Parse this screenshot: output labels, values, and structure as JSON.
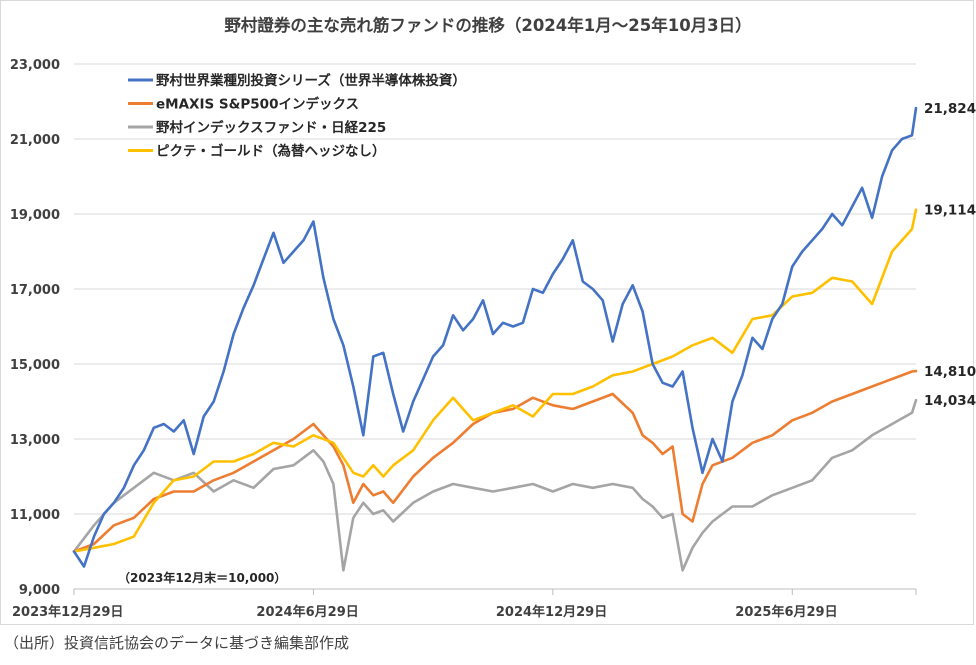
{
  "chart_data": {
    "type": "line",
    "title": "野村證券の主な売れ筋ファンドの推移（2024年1月～25年10月3日）",
    "xlabel": "",
    "ylabel": "",
    "x_unit": "months since 2023-12-29",
    "xlim": [
      0,
      21.1
    ],
    "ylim": [
      9000,
      23000
    ],
    "yticks": [
      9000,
      11000,
      13000,
      15000,
      17000,
      19000,
      21000,
      23000
    ],
    "ytick_labels": [
      "9,000",
      "11,000",
      "13,000",
      "15,000",
      "17,000",
      "19,000",
      "21,000",
      "23,000"
    ],
    "xticks": [
      0,
      6,
      12,
      18
    ],
    "xtick_labels": [
      "2023年12月29日",
      "2024年6月29日",
      "2024年12月29日",
      "2025年6月29日"
    ],
    "grid": true,
    "legend_position": "top-left",
    "annotation": "（2023年12月末＝10,000）",
    "series": [
      {
        "name": "野村世界業種別投資シリーズ（世界半導体株投資）",
        "color": "#4472c4",
        "end_label": "21,824",
        "x": [
          0,
          0.25,
          0.5,
          0.75,
          1,
          1.25,
          1.5,
          1.75,
          2,
          2.25,
          2.5,
          2.75,
          3,
          3.25,
          3.5,
          3.75,
          4,
          4.25,
          4.5,
          4.75,
          5,
          5.25,
          5.5,
          5.75,
          6,
          6.25,
          6.5,
          6.75,
          7,
          7.25,
          7.5,
          7.75,
          8,
          8.25,
          8.5,
          8.75,
          9,
          9.25,
          9.5,
          9.75,
          10,
          10.25,
          10.5,
          10.75,
          11,
          11.25,
          11.5,
          11.75,
          12,
          12.25,
          12.5,
          12.75,
          13,
          13.25,
          13.5,
          13.75,
          14,
          14.25,
          14.5,
          14.75,
          15,
          15.25,
          15.5,
          15.75,
          16,
          16.25,
          16.5,
          16.75,
          17,
          17.25,
          17.5,
          17.75,
          18,
          18.25,
          18.5,
          18.75,
          19,
          19.25,
          19.5,
          19.75,
          20,
          20.25,
          20.5,
          20.75,
          21,
          21.1
        ],
        "y": [
          10000,
          9600,
          10400,
          11000,
          11300,
          11700,
          12300,
          12700,
          13300,
          13400,
          13200,
          13500,
          12600,
          13600,
          14000,
          14800,
          15800,
          16500,
          17100,
          17800,
          18500,
          17700,
          18000,
          18300,
          18800,
          17300,
          16200,
          15500,
          14400,
          13100,
          15200,
          15300,
          14200,
          13200,
          14000,
          14600,
          15200,
          15500,
          16300,
          15900,
          16200,
          16700,
          15800,
          16100,
          16000,
          16100,
          17000,
          16900,
          17400,
          17800,
          18300,
          17200,
          17000,
          16700,
          15600,
          16600,
          17100,
          16400,
          15000,
          14500,
          14400,
          14800,
          13300,
          12100,
          13000,
          12400,
          14000,
          14700,
          15700,
          15400,
          16200,
          16600,
          17600,
          18000,
          18300,
          18600,
          19000,
          18700,
          19200,
          19700,
          18900,
          20000,
          20700,
          21000,
          21100,
          21824
        ]
      },
      {
        "name": "eMAXIS S&P500インデックス",
        "color": "#ed7d31",
        "end_label": "14,810",
        "x": [
          0,
          0.5,
          1,
          1.5,
          2,
          2.5,
          3,
          3.5,
          4,
          4.5,
          5,
          5.5,
          6,
          6.25,
          6.5,
          6.75,
          7,
          7.25,
          7.5,
          7.75,
          8,
          8.5,
          9,
          9.5,
          10,
          10.5,
          11,
          11.5,
          12,
          12.5,
          13,
          13.5,
          14,
          14.25,
          14.5,
          14.75,
          15,
          15.25,
          15.5,
          15.75,
          16,
          16.5,
          17,
          17.5,
          18,
          18.5,
          19,
          19.5,
          20,
          20.5,
          21,
          21.1
        ],
        "y": [
          10000,
          10200,
          10700,
          10900,
          11400,
          11600,
          11600,
          11900,
          12100,
          12400,
          12700,
          13000,
          13400,
          13100,
          12800,
          12300,
          11300,
          11800,
          11500,
          11600,
          11300,
          12000,
          12500,
          12900,
          13400,
          13700,
          13800,
          14100,
          13900,
          13800,
          14000,
          14200,
          13700,
          13100,
          12900,
          12600,
          12800,
          11000,
          10800,
          11800,
          12300,
          12500,
          12900,
          13100,
          13500,
          13700,
          14000,
          14200,
          14400,
          14600,
          14800,
          14810
        ]
      },
      {
        "name": "野村インデックスファンド・日経225",
        "color": "#a5a5a5",
        "end_label": "14,034",
        "x": [
          0,
          0.5,
          1,
          1.5,
          2,
          2.5,
          3,
          3.5,
          4,
          4.5,
          5,
          5.5,
          6,
          6.25,
          6.5,
          6.75,
          7,
          7.25,
          7.5,
          7.75,
          8,
          8.5,
          9,
          9.5,
          10,
          10.5,
          11,
          11.5,
          12,
          12.5,
          13,
          13.5,
          14,
          14.25,
          14.5,
          14.75,
          15,
          15.25,
          15.5,
          15.75,
          16,
          16.5,
          17,
          17.5,
          18,
          18.5,
          19,
          19.5,
          20,
          20.5,
          21,
          21.1
        ],
        "y": [
          10000,
          10700,
          11300,
          11700,
          12100,
          11900,
          12100,
          11600,
          11900,
          11700,
          12200,
          12300,
          12700,
          12400,
          11800,
          9500,
          10900,
          11300,
          11000,
          11100,
          10800,
          11300,
          11600,
          11800,
          11700,
          11600,
          11700,
          11800,
          11600,
          11800,
          11700,
          11800,
          11700,
          11400,
          11200,
          10900,
          11000,
          9500,
          10100,
          10500,
          10800,
          11200,
          11200,
          11500,
          11700,
          11900,
          12500,
          12700,
          13100,
          13400,
          13700,
          14034
        ]
      },
      {
        "name": "ピクテ・ゴールド（為替ヘッジなし）",
        "color": "#ffc000",
        "end_label": "19,114",
        "x": [
          0,
          0.5,
          1,
          1.5,
          2,
          2.5,
          3,
          3.5,
          4,
          4.5,
          5,
          5.5,
          6,
          6.5,
          7,
          7.25,
          7.5,
          7.75,
          8,
          8.5,
          9,
          9.5,
          10,
          10.5,
          11,
          11.5,
          12,
          12.5,
          13,
          13.5,
          14,
          14.5,
          15,
          15.5,
          16,
          16.5,
          17,
          17.5,
          18,
          18.5,
          19,
          19.5,
          20,
          20.5,
          21,
          21.1
        ],
        "y": [
          10000,
          10100,
          10200,
          10400,
          11300,
          11900,
          12000,
          12400,
          12400,
          12600,
          12900,
          12800,
          13100,
          12900,
          12100,
          12000,
          12300,
          12000,
          12300,
          12700,
          13500,
          14100,
          13500,
          13700,
          13900,
          13600,
          14200,
          14200,
          14400,
          14700,
          14800,
          15000,
          15200,
          15500,
          15700,
          15300,
          16200,
          16300,
          16800,
          16900,
          17300,
          17200,
          16600,
          18000,
          18600,
          19114
        ]
      }
    ]
  },
  "footer": {
    "source": "（出所）投資信託協会のデータに基づき編集部作成"
  }
}
